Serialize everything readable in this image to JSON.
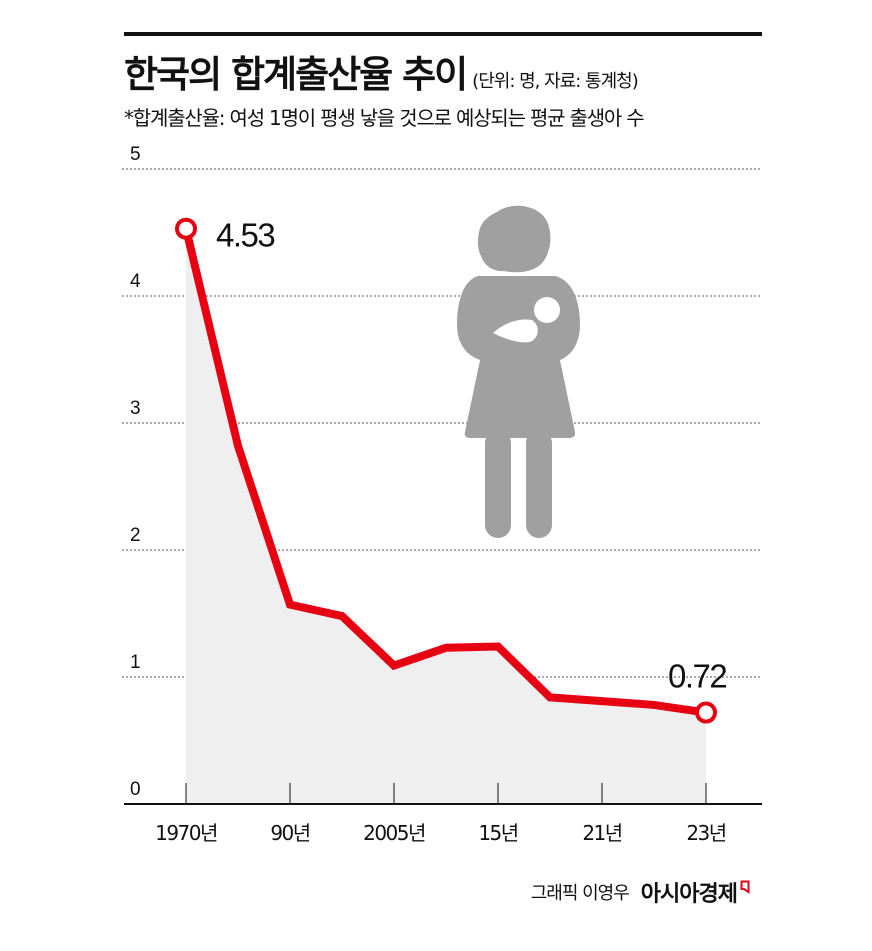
{
  "header": {
    "title": "한국의 합계출산율 추이",
    "unit_source": "(단위: 명, 자료: 통계청)",
    "subtitle": "*합계출산율: 여성 1명이 평생 낳을 것으로 예상되는 평균 출생아 수"
  },
  "icon": {
    "name": "mother-holding-baby-icon",
    "color": "#a0a0a0"
  },
  "credit": {
    "author": "그래픽 이영우",
    "brand": "아시아경제",
    "brand_mark_color": "#e60012"
  },
  "colors": {
    "line": "#e60012",
    "area_fill": "#efefef",
    "grid": "#555555",
    "axis": "#111111"
  },
  "chart_data": {
    "type": "line",
    "title": "한국의 합계출산율 추이",
    "subtitle": "*합계출산율: 여성 1명이 평생 낳을 것으로 예상되는 평균 출생아 수",
    "unit": "명",
    "source": "통계청",
    "xlabel": "",
    "ylabel": "",
    "ylim": [
      0,
      5
    ],
    "yticks": [
      0,
      1,
      2,
      3,
      4,
      5
    ],
    "grid": true,
    "grid_style": "dotted horizontal",
    "area_fill": true,
    "x_tick_labels": [
      "1970년",
      "90년",
      "2005년",
      "15년",
      "21년",
      "23년"
    ],
    "x": [
      1970,
      1980,
      1990,
      2000,
      2005,
      2010,
      2015,
      2020,
      2021,
      2022,
      2023
    ],
    "series": [
      {
        "name": "합계출산율",
        "values": [
          4.53,
          2.82,
          1.57,
          1.48,
          1.09,
          1.23,
          1.24,
          0.84,
          0.81,
          0.78,
          0.72
        ]
      }
    ],
    "annotations": [
      {
        "x": 1970,
        "label": "4.53"
      },
      {
        "x": 2023,
        "label": "0.72"
      }
    ]
  }
}
